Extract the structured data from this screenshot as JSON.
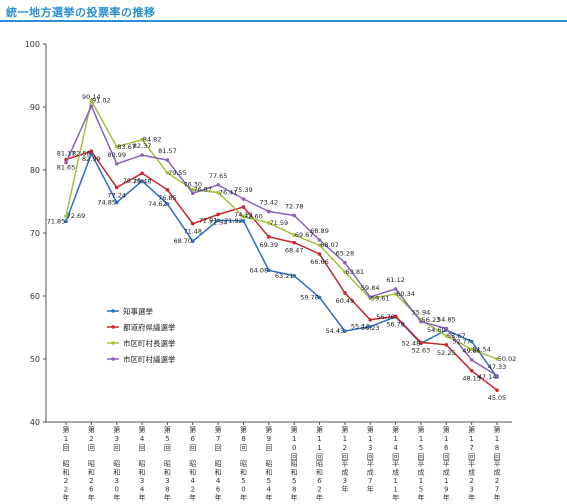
{
  "page": {
    "title": "統一地方選挙の投票率の推移"
  },
  "chart_data": {
    "type": "line",
    "title": "統一地方選挙の投票率の推移",
    "xlabel": "",
    "ylabel": "",
    "ylim": [
      40,
      100
    ],
    "yticks": [
      40,
      50,
      60,
      70,
      80,
      90,
      100
    ],
    "grid": false,
    "legend": "left-bottom",
    "categories": [
      {
        "kai": "第1回",
        "era": "昭和22年"
      },
      {
        "kai": "第2回",
        "era": "昭和26年"
      },
      {
        "kai": "第3回",
        "era": "昭和30年"
      },
      {
        "kai": "第4回",
        "era": "昭和34年"
      },
      {
        "kai": "第5回",
        "era": "昭和38年"
      },
      {
        "kai": "第6回",
        "era": "昭和42年"
      },
      {
        "kai": "第7回",
        "era": "昭和46年"
      },
      {
        "kai": "第8回",
        "era": "昭和50年"
      },
      {
        "kai": "第9回",
        "era": "昭和54年"
      },
      {
        "kai": "第10回",
        "era": "昭和58年"
      },
      {
        "kai": "第11回",
        "era": "昭和62年"
      },
      {
        "kai": "第12回",
        "era": "平成3年"
      },
      {
        "kai": "第13回",
        "era": "平成7年"
      },
      {
        "kai": "第14回",
        "era": "平成11年"
      },
      {
        "kai": "第15回",
        "era": "平成15年"
      },
      {
        "kai": "第16回",
        "era": "平成19年"
      },
      {
        "kai": "第17回",
        "era": "平成23年"
      },
      {
        "kai": "第18回",
        "era": "平成27年"
      }
    ],
    "series": [
      {
        "name": "知事選挙",
        "color": "#2b6fc2",
        "values": [
          71.85,
          82.58,
          74.85,
          78.25,
          74.62,
          68.7,
          72.01,
          71.92,
          64.08,
          63.21,
          59.78,
          54.43,
          55.12,
          56.7,
          52.48,
          54.6,
          52.77,
          47.14
        ]
      },
      {
        "name": "都道府県議選挙",
        "color": "#c8262c",
        "values": [
          81.65,
          82.99,
          77.24,
          79.48,
          76.85,
          71.48,
          72.94,
          74.13,
          69.39,
          68.47,
          66.66,
          60.49,
          56.23,
          56.78,
          52.63,
          52.25,
          48.15,
          45.05
        ]
      },
      {
        "name": "市区町村長選挙",
        "color": "#9fc23a",
        "values": [
          72.69,
          91.02,
          83.67,
          84.82,
          79.55,
          76.87,
          76.41,
          72.6,
          71.59,
          69.67,
          68.07,
          63.81,
          59.61,
          60.34,
          56.23,
          53.67,
          51.54,
          50.02
        ]
      },
      {
        "name": "市区町村議選挙",
        "color": "#8a63b8",
        "values": [
          81.17,
          90.14,
          80.99,
          82.37,
          81.57,
          76.3,
          77.65,
          75.39,
          73.42,
          72.78,
          68.89,
          65.28,
          59.84,
          61.12,
          55.94,
          54.85,
          49.86,
          47.33
        ]
      }
    ]
  }
}
